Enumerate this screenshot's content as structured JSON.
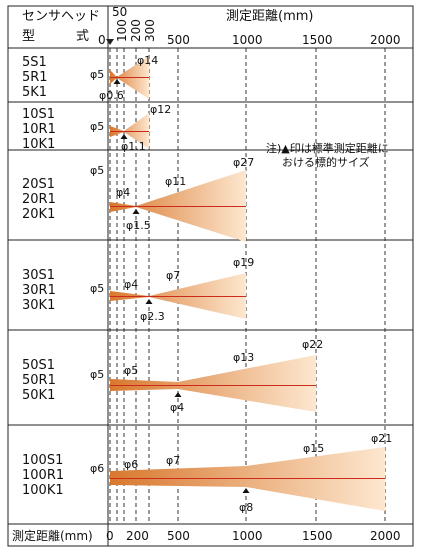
{
  "header": {
    "title": "測定距離(mm)",
    "col_label_line1": "センサヘッド",
    "col_label_line2_a": "型",
    "col_label_line2_b": "式",
    "top_ticks": [
      "0",
      "50",
      "100",
      "200",
      "300",
      "500",
      "1000",
      "1500",
      "2000"
    ]
  },
  "note": {
    "line1": "注)▲印は標準測定距離に",
    "line2": "おける標的サイズ"
  },
  "footer": {
    "axis_label": "測定距離(mm)",
    "ticks": [
      "0",
      "200",
      "500",
      "1000",
      "1500",
      "2000"
    ]
  },
  "rows": [
    {
      "models": [
        "5S1",
        "5R1",
        "5K1"
      ],
      "start_label": "φ5",
      "mid_labels": [],
      "end_label": "φ14",
      "std_label": "φ0.6",
      "end_distance_mm": 300,
      "std_distance_mm": 50,
      "start_dia_mm": 5,
      "end_dia_mm": 14,
      "std_dia_mm": 0.6
    },
    {
      "models": [
        "10S1",
        "10R1",
        "10K1"
      ],
      "start_label": "φ5",
      "mid_labels": [],
      "end_label": "φ12",
      "std_label": "φ1.1",
      "end_distance_mm": 300,
      "std_distance_mm": 100,
      "start_dia_mm": 5,
      "end_dia_mm": 12,
      "std_dia_mm": 1.1
    },
    {
      "models": [
        "20S1",
        "20R1",
        "20K1"
      ],
      "start_label": "φ5",
      "mid_labels": [
        "φ4",
        "φ11"
      ],
      "end_label": "φ27",
      "std_label": "φ1.5",
      "end_distance_mm": 1000,
      "std_distance_mm": 200,
      "start_dia_mm": 5,
      "end_dia_mm": 27,
      "std_dia_mm": 1.5
    },
    {
      "models": [
        "30S1",
        "30R1",
        "30K1"
      ],
      "start_label": "φ5",
      "mid_labels": [
        "φ4",
        "φ7"
      ],
      "end_label": "φ19",
      "std_label": "φ2.3",
      "end_distance_mm": 1000,
      "std_distance_mm": 300,
      "start_dia_mm": 5,
      "end_dia_mm": 19,
      "std_dia_mm": 2.3
    },
    {
      "models": [
        "50S1",
        "50R1",
        "50K1"
      ],
      "start_label": "φ5",
      "mid_labels": [
        "φ5",
        "φ13"
      ],
      "end_label": "φ22",
      "std_label": "φ4",
      "end_distance_mm": 1500,
      "std_distance_mm": 500,
      "start_dia_mm": 5,
      "end_dia_mm": 22,
      "std_dia_mm": 4
    },
    {
      "models": [
        "100S1",
        "100R1",
        "100K1"
      ],
      "start_label": "φ6",
      "mid_labels": [
        "φ6",
        "φ7",
        "φ15"
      ],
      "end_label": "φ21",
      "std_label": "φ8",
      "end_distance_mm": 2000,
      "std_distance_mm": 1000,
      "start_dia_mm": 6,
      "end_dia_mm": 21,
      "std_dia_mm": 8
    }
  ],
  "colors": {
    "beam_near": "#d8782e",
    "beam_far": "#fde7cf",
    "center_line": "#cc2a1a",
    "grid": "#222222"
  }
}
